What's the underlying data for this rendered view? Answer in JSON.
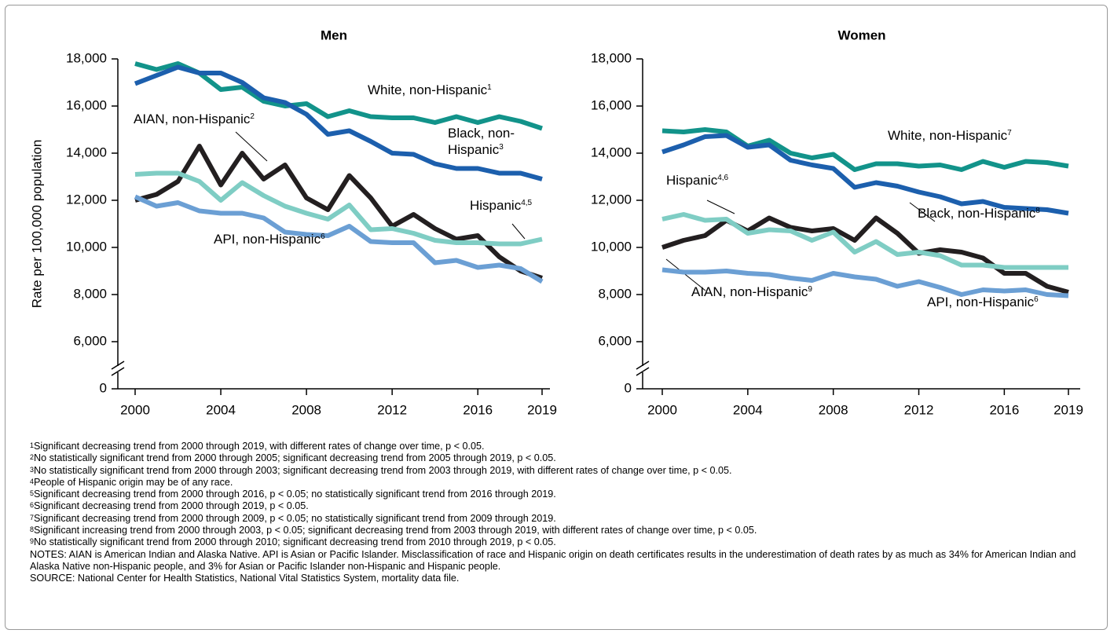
{
  "chart_data": [
    {
      "type": "line",
      "title": "Men",
      "y_label": "Rate per 100,000 population",
      "x": [
        2000,
        2001,
        2002,
        2003,
        2004,
        2005,
        2006,
        2007,
        2008,
        2009,
        2010,
        2011,
        2012,
        2013,
        2014,
        2015,
        2016,
        2017,
        2018,
        2019
      ],
      "xlim": [
        2000,
        2019
      ],
      "xticks": [
        2000,
        2004,
        2008,
        2012,
        2016,
        2019
      ],
      "ylim": [
        0,
        18000
      ],
      "axis_break": true,
      "yticks": [
        0,
        {
          "value": 6000,
          "label": "6,000"
        },
        {
          "value": 8000,
          "label": "8,000"
        },
        {
          "value": 10000,
          "label": "10,000"
        },
        {
          "value": 12000,
          "label": "12,000"
        },
        {
          "value": 14000,
          "label": "14,000"
        },
        {
          "value": 16000,
          "label": "16,000"
        },
        {
          "value": 18000,
          "label": "18,000"
        }
      ],
      "series": [
        {
          "name": "White, non-Hispanic",
          "sup": "1",
          "color": "#12938a",
          "values": [
            17800,
            17550,
            17800,
            17400,
            16700,
            16800,
            16200,
            16000,
            16100,
            15550,
            15800,
            15550,
            15500,
            15500,
            15300,
            15550,
            15300,
            15550,
            15350,
            15050
          ]
        },
        {
          "name": "Black, non-Hispanic",
          "sup": "3",
          "color": "#1c5fad",
          "values": [
            16950,
            17300,
            17650,
            17400,
            17400,
            17000,
            16350,
            16150,
            15650,
            14800,
            14950,
            14500,
            14000,
            13950,
            13550,
            13350,
            13350,
            13150,
            13150,
            12900
          ]
        },
        {
          "name": "AIAN, non-Hispanic",
          "sup": "2",
          "color": "#231f20",
          "values": [
            12000,
            12250,
            12800,
            14300,
            12650,
            14000,
            12900,
            13500,
            12100,
            11600,
            13050,
            12100,
            10900,
            11400,
            10800,
            10350,
            10500,
            9600,
            9000,
            8700
          ]
        },
        {
          "name": "Hispanic",
          "sup": "4,5",
          "color": "#7fcdc4",
          "values": [
            13100,
            13150,
            13150,
            12800,
            12000,
            12750,
            12200,
            11750,
            11450,
            11200,
            11800,
            10750,
            10800,
            10600,
            10300,
            10200,
            10200,
            10150,
            10150,
            10350
          ]
        },
        {
          "name": "API, non-Hispanic",
          "sup": "6",
          "color": "#6b9fd4",
          "values": [
            12150,
            11750,
            11900,
            11550,
            11450,
            11450,
            11250,
            10650,
            10550,
            10500,
            10900,
            10250,
            10200,
            10200,
            9350,
            9450,
            9150,
            9250,
            9100,
            8550
          ]
        }
      ]
    },
    {
      "type": "line",
      "title": "Women",
      "x": [
        2000,
        2001,
        2002,
        2003,
        2004,
        2005,
        2006,
        2007,
        2008,
        2009,
        2010,
        2011,
        2012,
        2013,
        2014,
        2015,
        2016,
        2017,
        2018,
        2019
      ],
      "xlim": [
        2000,
        2019
      ],
      "xticks": [
        2000,
        2004,
        2008,
        2012,
        2016,
        2019
      ],
      "ylim": [
        0,
        18000
      ],
      "axis_break": true,
      "yticks": [
        0,
        {
          "value": 6000,
          "label": "6,000"
        },
        {
          "value": 8000,
          "label": "8,000"
        },
        {
          "value": 10000,
          "label": "10,000"
        },
        {
          "value": 12000,
          "label": "12,000"
        },
        {
          "value": 14000,
          "label": "14,000"
        },
        {
          "value": 16000,
          "label": "16,000"
        },
        {
          "value": 18000,
          "label": "18,000"
        }
      ],
      "series": [
        {
          "name": "White, non-Hispanic",
          "sup": "7",
          "color": "#12938a",
          "values": [
            14950,
            14900,
            15000,
            14900,
            14300,
            14550,
            14000,
            13800,
            13950,
            13300,
            13550,
            13550,
            13450,
            13500,
            13300,
            13650,
            13400,
            13650,
            13600,
            13450
          ]
        },
        {
          "name": "Black, non-Hispanic",
          "sup": "8",
          "color": "#1c5fad",
          "values": [
            14050,
            14350,
            14700,
            14750,
            14250,
            14350,
            13700,
            13500,
            13350,
            12550,
            12750,
            12600,
            12350,
            12150,
            11850,
            11950,
            11700,
            11650,
            11600,
            11450
          ]
        },
        {
          "name": "AIAN, non-Hispanic",
          "sup": "9",
          "color": "#231f20",
          "values": [
            10000,
            10300,
            10500,
            11150,
            10700,
            11250,
            10850,
            10700,
            10800,
            10300,
            11250,
            10600,
            9750,
            9900,
            9800,
            9550,
            8900,
            8900,
            8350,
            8100
          ]
        },
        {
          "name": "Hispanic",
          "sup": "4,6",
          "color": "#7fcdc4",
          "values": [
            11200,
            11400,
            11150,
            11200,
            10600,
            10750,
            10700,
            10300,
            10650,
            9800,
            10250,
            9700,
            9800,
            9650,
            9250,
            9250,
            9150,
            9150,
            9150,
            9150
          ]
        },
        {
          "name": "API, non-Hispanic",
          "sup": "6",
          "color": "#6b9fd4",
          "values": [
            9050,
            8950,
            8950,
            9000,
            8900,
            8850,
            8700,
            8600,
            8900,
            8750,
            8650,
            8350,
            8550,
            8300,
            8000,
            8200,
            8150,
            8200,
            8000,
            7950
          ]
        }
      ]
    }
  ],
  "footnotes": [
    {
      "number": "1",
      "text": "Significant decreasing trend from 2000 through 2019, with different rates of change over time, p < 0.05."
    },
    {
      "number": "2",
      "text": "No statistically significant trend from 2000 through 2005; significant decreasing trend from 2005 through 2019, p < 0.05."
    },
    {
      "number": "3",
      "text": "No statistically significant trend from 2000 through 2003; significant decreasing trend from 2003 through 2019, with different rates of change over time, p < 0.05."
    },
    {
      "number": "4",
      "text": "People of Hispanic origin may be of any race."
    },
    {
      "number": "5",
      "text": "Significant decreasing trend from 2000 through 2016, p < 0.05; no statistically significant trend from 2016 through 2019."
    },
    {
      "number": "6",
      "text": "Significant decreasing trend from 2000 through 2019, p < 0.05."
    },
    {
      "number": "7",
      "text": "Significant decreasing trend from 2000 through 2009, p < 0.05; no statistically significant trend from 2009 through 2019."
    },
    {
      "number": "8",
      "text": "Significant increasing trend from 2000 through 2003, p < 0.05; significant decreasing trend from 2003 through 2019, with different rates of change over time, p < 0.05."
    },
    {
      "number": "9",
      "text": "No statistically significant trend from 2000 through 2010; significant decreasing trend from 2010 through 2019, p < 0.05."
    }
  ],
  "notes": "NOTES: AIAN is American Indian and Alaska Native. API is Asian or Pacific Islander. Misclassification of race and Hispanic origin on death certificates results in the underestimation of death rates by as much as 34% for American Indian and Alaska Native non-Hispanic people, and 3% for Asian or Pacific Islander non-Hispanic and Hispanic people.",
  "source": "SOURCE: National Center for Health Statistics, National Vital Statistics System, mortality data file."
}
